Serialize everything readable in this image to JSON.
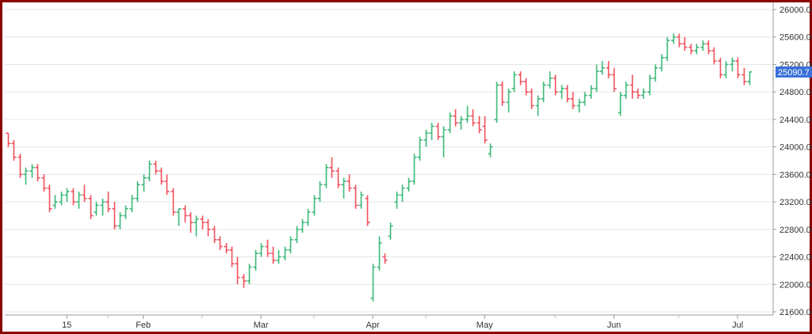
{
  "chart_data": {
    "type": "ohlc",
    "title": "",
    "xlabel": "",
    "ylabel": "",
    "ylim": [
      21600,
      26000
    ],
    "y_ticks": [
      "21600.00",
      "22000.00",
      "22400.00",
      "22800.00",
      "23200.00",
      "23600.00",
      "24000.00",
      "24400.00",
      "24800.00",
      "25200.00",
      "25600.00",
      "26000.00"
    ],
    "y_tick_values": [
      21600,
      22000,
      22400,
      22800,
      23200,
      23600,
      24000,
      24400,
      24800,
      25200,
      25600,
      26000
    ],
    "x_ticks": [
      {
        "label": "15",
        "index": 10
      },
      {
        "label": "Feb",
        "index": 23
      },
      {
        "label": "Mar",
        "index": 43
      },
      {
        "label": "Apr",
        "index": 62
      },
      {
        "label": "May",
        "index": 81
      },
      {
        "label": "Jun",
        "index": 103
      },
      {
        "label": "Jul",
        "index": 124
      }
    ],
    "last_price": "25090.7",
    "colors": {
      "up": "#3cb878",
      "down": "#f0505a",
      "last_price_bg": "#3a6fd8",
      "frame": "#8b0000",
      "grid": "#e6e6e6"
    },
    "bars": [
      [
        24200,
        24200,
        24000,
        24050
      ],
      [
        24050,
        24100,
        23800,
        23850
      ],
      [
        23850,
        23900,
        23550,
        23600
      ],
      [
        23600,
        23700,
        23450,
        23650
      ],
      [
        23650,
        23750,
        23550,
        23700
      ],
      [
        23700,
        23750,
        23500,
        23550
      ],
      [
        23550,
        23600,
        23350,
        23400
      ],
      [
        23400,
        23450,
        23050,
        23100
      ],
      [
        23150,
        23300,
        23100,
        23200
      ],
      [
        23200,
        23350,
        23150,
        23300
      ],
      [
        23300,
        23400,
        23200,
        23350
      ],
      [
        23350,
        23400,
        23150,
        23200
      ],
      [
        23200,
        23350,
        23100,
        23300
      ],
      [
        23300,
        23450,
        23200,
        23250
      ],
      [
        23250,
        23300,
        22950,
        23000
      ],
      [
        23050,
        23200,
        23000,
        23150
      ],
      [
        23150,
        23250,
        23000,
        23200
      ],
      [
        23200,
        23350,
        23050,
        23100
      ],
      [
        23100,
        23200,
        22800,
        22850
      ],
      [
        22850,
        23050,
        22800,
        23000
      ],
      [
        23000,
        23150,
        22950,
        23100
      ],
      [
        23100,
        23300,
        23050,
        23250
      ],
      [
        23250,
        23500,
        23200,
        23450
      ],
      [
        23450,
        23600,
        23350,
        23550
      ],
      [
        23550,
        23800,
        23500,
        23750
      ],
      [
        23750,
        23800,
        23600,
        23650
      ],
      [
        23650,
        23700,
        23450,
        23500
      ],
      [
        23500,
        23600,
        23300,
        23350
      ],
      [
        23350,
        23400,
        23000,
        23050
      ],
      [
        23050,
        23100,
        22850,
        23100
      ],
      [
        23100,
        23150,
        22900,
        23000
      ],
      [
        23000,
        23050,
        22750,
        22900
      ],
      [
        22900,
        23000,
        22700,
        22950
      ],
      [
        22950,
        23000,
        22800,
        22900
      ],
      [
        22900,
        22950,
        22700,
        22800
      ],
      [
        22800,
        22850,
        22600,
        22650
      ],
      [
        22650,
        22700,
        22500,
        22550
      ],
      [
        22550,
        22600,
        22450,
        22500
      ],
      [
        22500,
        22550,
        22250,
        22300
      ],
      [
        22300,
        22400,
        22000,
        22100
      ],
      [
        22100,
        22150,
        21950,
        22050
      ],
      [
        22050,
        22300,
        22000,
        22250
      ],
      [
        22250,
        22500,
        22200,
        22450
      ],
      [
        22450,
        22600,
        22400,
        22550
      ],
      [
        22550,
        22650,
        22400,
        22450
      ],
      [
        22450,
        22550,
        22300,
        22350
      ],
      [
        22350,
        22500,
        22300,
        22400
      ],
      [
        22400,
        22550,
        22350,
        22500
      ],
      [
        22500,
        22700,
        22450,
        22650
      ],
      [
        22650,
        22850,
        22600,
        22800
      ],
      [
        22800,
        22950,
        22750,
        22900
      ],
      [
        22900,
        23100,
        22850,
        23050
      ],
      [
        23050,
        23300,
        23000,
        23250
      ],
      [
        23250,
        23500,
        23200,
        23450
      ],
      [
        23450,
        23750,
        23400,
        23700
      ],
      [
        23700,
        23850,
        23550,
        23650
      ],
      [
        23650,
        23700,
        23400,
        23450
      ],
      [
        23450,
        23550,
        23250,
        23500
      ],
      [
        23500,
        23600,
        23350,
        23400
      ],
      [
        23400,
        23450,
        23100,
        23150
      ],
      [
        23150,
        23350,
        23100,
        23300
      ],
      [
        23250,
        23300,
        22850,
        22900
      ],
      [
        21800,
        22300,
        21750,
        22250
      ],
      [
        22250,
        22700,
        22200,
        22600
      ],
      [
        22400,
        22450,
        22300,
        22350
      ],
      [
        22700,
        22900,
        22650,
        22850
      ],
      [
        23200,
        23350,
        23100,
        23300
      ],
      [
        23300,
        23450,
        23200,
        23400
      ],
      [
        23400,
        23550,
        23350,
        23500
      ],
      [
        23500,
        23900,
        23450,
        23850
      ],
      [
        23850,
        24150,
        23800,
        24100
      ],
      [
        24100,
        24250,
        24000,
        24200
      ],
      [
        24200,
        24350,
        24100,
        24300
      ],
      [
        24300,
        24350,
        24100,
        24150
      ],
      [
        24150,
        24300,
        23850,
        24250
      ],
      [
        24250,
        24500,
        24200,
        24450
      ],
      [
        24450,
        24550,
        24300,
        24350
      ],
      [
        24350,
        24450,
        24250,
        24400
      ],
      [
        24400,
        24600,
        24350,
        24450
      ],
      [
        24450,
        24550,
        24300,
        24350
      ],
      [
        24350,
        24450,
        24200,
        24250
      ],
      [
        24300,
        24450,
        24050,
        24100
      ],
      [
        23900,
        24050,
        23850,
        24000
      ],
      [
        24400,
        24950,
        24350,
        24900
      ],
      [
        24900,
        24950,
        24600,
        24650
      ],
      [
        24650,
        24850,
        24500,
        24800
      ],
      [
        24850,
        25100,
        24800,
        25050
      ],
      [
        25050,
        25100,
        24900,
        24950
      ],
      [
        24950,
        25000,
        24750,
        24800
      ],
      [
        24800,
        24850,
        24550,
        24600
      ],
      [
        24600,
        24750,
        24450,
        24700
      ],
      [
        24700,
        24950,
        24650,
        24900
      ],
      [
        24900,
        25100,
        24850,
        25000
      ],
      [
        25000,
        25050,
        24750,
        24800
      ],
      [
        24800,
        24900,
        24700,
        24850
      ],
      [
        24850,
        24900,
        24650,
        24700
      ],
      [
        24700,
        24800,
        24550,
        24600
      ],
      [
        24600,
        24700,
        24500,
        24650
      ],
      [
        24650,
        24800,
        24600,
        24750
      ],
      [
        24750,
        24900,
        24700,
        24850
      ],
      [
        24850,
        25200,
        24800,
        25100
      ],
      [
        25100,
        25250,
        25050,
        25150
      ],
      [
        25150,
        25250,
        25000,
        25050
      ],
      [
        25050,
        25150,
        24800,
        24850
      ],
      [
        24500,
        24800,
        24450,
        24750
      ],
      [
        24750,
        24950,
        24700,
        24900
      ],
      [
        24900,
        25050,
        24700,
        24800
      ],
      [
        24800,
        24850,
        24700,
        24750
      ],
      [
        24750,
        24850,
        24700,
        24800
      ],
      [
        24800,
        25050,
        24750,
        25000
      ],
      [
        25000,
        25200,
        24950,
        25150
      ],
      [
        25150,
        25350,
        25100,
        25300
      ],
      [
        25300,
        25600,
        25250,
        25550
      ],
      [
        25550,
        25650,
        25500,
        25600
      ],
      [
        25600,
        25650,
        25450,
        25500
      ],
      [
        25500,
        25600,
        25400,
        25450
      ],
      [
        25450,
        25500,
        25350,
        25400
      ],
      [
        25400,
        25500,
        25350,
        25450
      ],
      [
        25450,
        25550,
        25400,
        25500
      ],
      [
        25500,
        25550,
        25350,
        25400
      ],
      [
        25400,
        25450,
        25200,
        25250
      ],
      [
        25250,
        25300,
        25000,
        25050
      ],
      [
        25050,
        25250,
        25000,
        25200
      ],
      [
        25200,
        25300,
        25100,
        25250
      ],
      [
        25250,
        25300,
        25000,
        25050
      ],
      [
        25050,
        25150,
        24900,
        24950
      ],
      [
        24950,
        25100,
        24900,
        25090.7
      ]
    ]
  }
}
